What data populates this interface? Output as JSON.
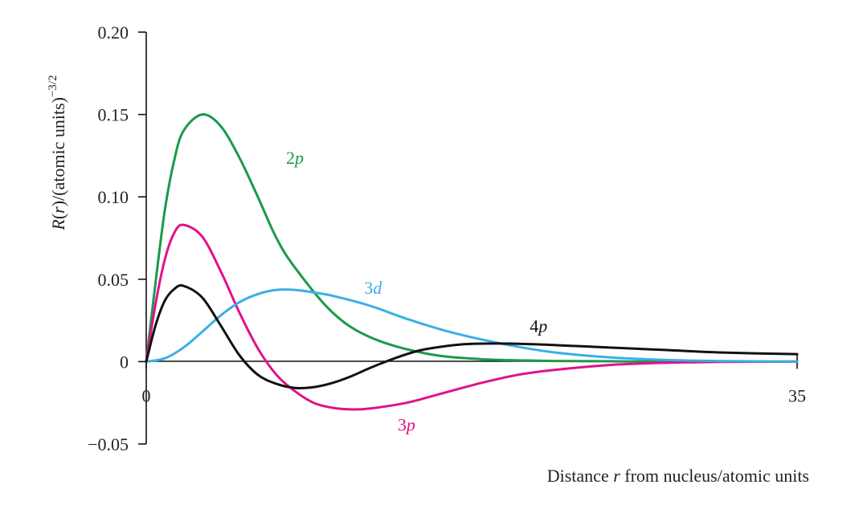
{
  "chart_data": {
    "type": "line",
    "title": "",
    "xlabel": {
      "prefix": "Distance ",
      "var": "r",
      "suffix": " from nucleus/atomic units"
    },
    "ylabel": {
      "func": "R",
      "open": "(",
      "var": "r",
      "middle": ")/(atomic units)",
      "exponent": "−3/2"
    },
    "xlim": [
      0,
      35
    ],
    "ylim": [
      -0.05,
      0.2
    ],
    "x_ticks": [
      0,
      35
    ],
    "x_tick_labels": [
      "0",
      "35"
    ],
    "y_ticks": [
      -0.05,
      0,
      0.05,
      0.1,
      0.15,
      0.2
    ],
    "y_tick_labels": [
      "−0.05",
      "0",
      "0.05",
      "0.10",
      "0.15",
      "0.20"
    ],
    "grid": false,
    "legend": "inline labels next to curves",
    "series": [
      {
        "name": "2p",
        "label_n": "2",
        "label_l": "p",
        "color": "#1a9a4a",
        "x": [
          0,
          0.5,
          1,
          1.5,
          2,
          3,
          4,
          5,
          6,
          7,
          8,
          10,
          12,
          15,
          18,
          22,
          26,
          30,
          35
        ],
        "y": [
          0,
          0.048,
          0.092,
          0.122,
          0.14,
          0.15,
          0.143,
          0.124,
          0.1,
          0.075,
          0.057,
          0.03,
          0.015,
          0.005,
          0.0015,
          0.0004,
          0.0001,
          0,
          0
        ]
      },
      {
        "name": "3p",
        "label_n": "3",
        "label_l": "p",
        "color": "#e0128a",
        "x": [
          0,
          0.5,
          1,
          1.5,
          2,
          3,
          4,
          5,
          6,
          7,
          8,
          9,
          10,
          11,
          12,
          14,
          16,
          18,
          20,
          22,
          25,
          28,
          31,
          35
        ],
        "y": [
          0,
          0.035,
          0.062,
          0.078,
          0.083,
          0.076,
          0.055,
          0.03,
          0.008,
          -0.008,
          -0.018,
          -0.025,
          -0.028,
          -0.029,
          -0.0285,
          -0.025,
          -0.019,
          -0.013,
          -0.008,
          -0.005,
          -0.002,
          -0.0007,
          -0.0002,
          0
        ]
      },
      {
        "name": "3d",
        "label_n": "3",
        "label_l": "d",
        "color": "#3aaee6",
        "x": [
          0,
          1,
          2,
          3,
          4,
          5,
          6,
          7,
          8,
          9,
          10,
          12,
          14,
          16,
          18,
          20,
          22,
          25,
          28,
          31,
          35
        ],
        "y": [
          0,
          0.002,
          0.0085,
          0.018,
          0.028,
          0.036,
          0.041,
          0.0435,
          0.0435,
          0.042,
          0.04,
          0.034,
          0.026,
          0.019,
          0.0135,
          0.009,
          0.0055,
          0.0025,
          0.001,
          0.0003,
          0
        ]
      },
      {
        "name": "4p",
        "label_n": "4",
        "label_l": "p",
        "color": "#111111",
        "x": [
          0,
          0.5,
          1,
          1.5,
          2,
          3,
          4,
          5,
          6,
          7,
          8,
          9,
          10,
          11,
          12,
          13,
          14,
          15,
          17,
          19,
          21,
          23,
          25,
          28,
          31,
          35
        ],
        "y": [
          0,
          0.022,
          0.037,
          0.044,
          0.046,
          0.039,
          0.022,
          0.004,
          -0.008,
          -0.0135,
          -0.016,
          -0.0155,
          -0.013,
          -0.009,
          -0.004,
          0.0005,
          0.0045,
          0.0075,
          0.0105,
          0.011,
          0.0105,
          0.0095,
          0.0085,
          0.007,
          0.0055,
          0.0045
        ]
      }
    ]
  }
}
